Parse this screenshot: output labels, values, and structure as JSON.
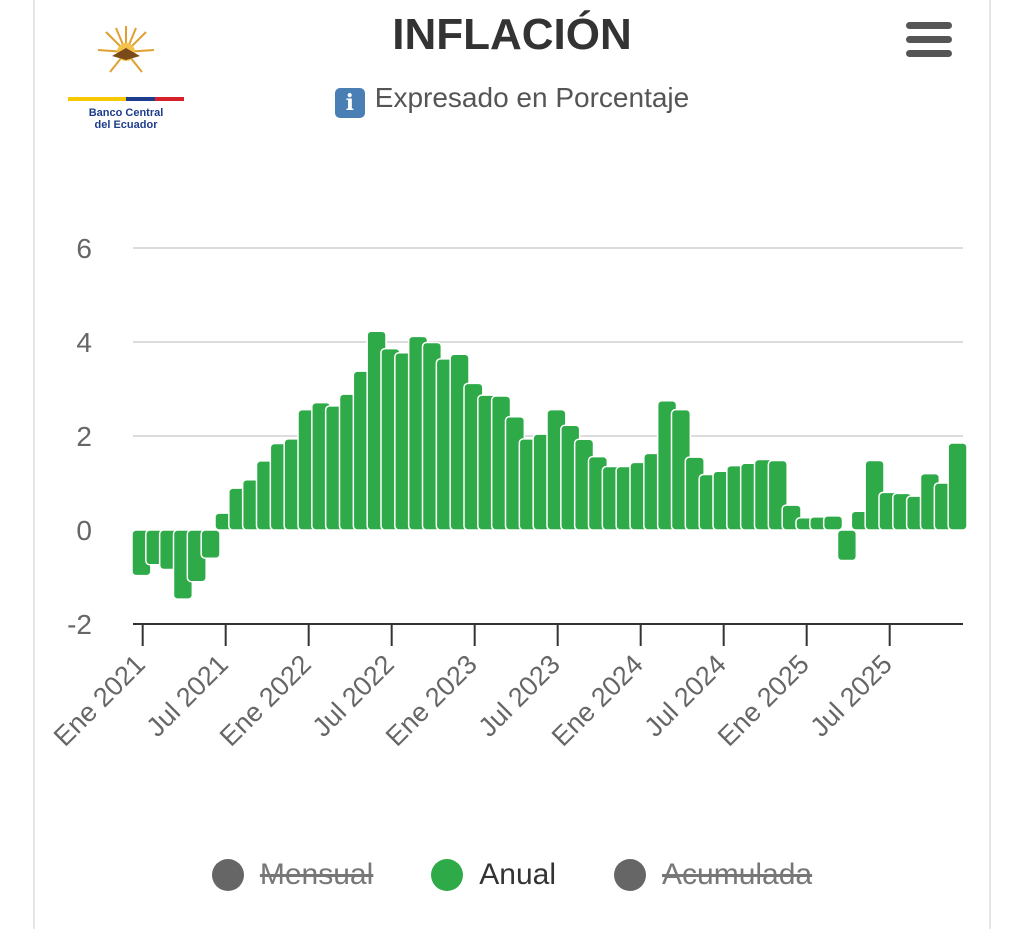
{
  "header": {
    "title": "INFLACIÓN",
    "subtitle": "Expresado en Porcentaje",
    "info_icon": "i",
    "logo_line1": "Banco Central",
    "logo_line2": "del Ecuador"
  },
  "colors": {
    "anual": "#2eab48",
    "hidden": "#666666"
  },
  "legend": [
    {
      "label": "Mensual",
      "visible": false
    },
    {
      "label": "Anual",
      "visible": true
    },
    {
      "label": "Acumulada",
      "visible": false
    }
  ],
  "chart_data": {
    "type": "bar",
    "title": "INFLACIÓN",
    "subtitle": "Expresado en Porcentaje",
    "ylim": [
      -2,
      6
    ],
    "yticks": [
      "-2",
      "0",
      "2",
      "4",
      "6"
    ],
    "xtick_labels": [
      "Ene 2021",
      "Jul 2021",
      "Ene 2022",
      "Jul 2022",
      "Ene 2023",
      "Jul 2023",
      "Ene 2024",
      "Jul 2024",
      "Ene 2025",
      "Jul 2025"
    ],
    "grid": true,
    "legend_position": "bottom",
    "start": "Ene 2021",
    "series": [
      {
        "name": "Anual",
        "values": [
          -0.97,
          -0.74,
          -0.84,
          -1.47,
          -1.1,
          -0.6,
          0.36,
          0.89,
          1.07,
          1.47,
          1.84,
          1.94,
          2.56,
          2.71,
          2.64,
          2.89,
          3.38,
          4.23,
          3.86,
          3.77,
          4.12,
          3.99,
          3.64,
          3.74,
          3.12,
          2.87,
          2.85,
          2.41,
          1.94,
          2.04,
          2.56,
          2.23,
          1.93,
          1.56,
          1.35,
          1.35,
          1.44,
          1.63,
          2.75,
          2.56,
          1.55,
          1.18,
          1.25,
          1.37,
          1.42,
          1.5,
          1.48,
          0.53,
          0.26,
          0.28,
          0.3,
          -0.65,
          0.4,
          1.48,
          0.8,
          0.78,
          0.72,
          1.2,
          1.0,
          1.85
        ]
      }
    ]
  }
}
